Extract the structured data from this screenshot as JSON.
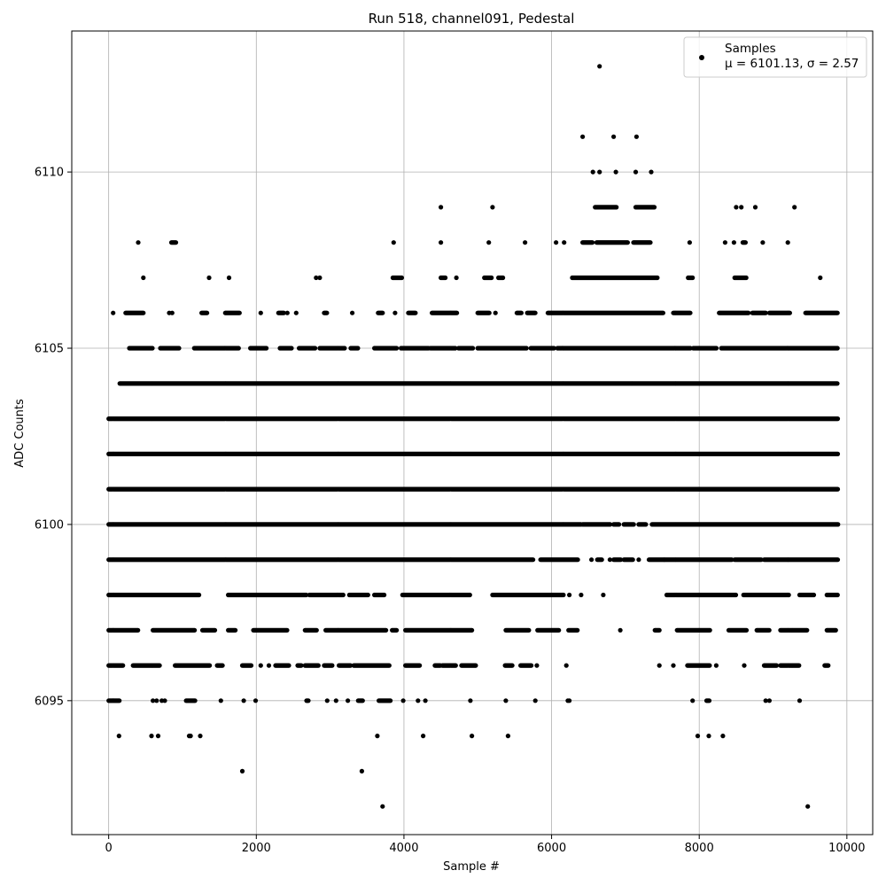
{
  "chart_data": {
    "type": "scatter",
    "title": "Run 518, channel091, Pedestal",
    "xlabel": "Sample #",
    "ylabel": "ADC Counts",
    "xlim": [
      -500,
      10350
    ],
    "ylim": [
      6091.2,
      6114.0
    ],
    "x_ticks": [
      0,
      2000,
      4000,
      6000,
      8000,
      10000
    ],
    "y_ticks": [
      6095,
      6100,
      6105,
      6110
    ],
    "grid": true,
    "legend_position": "top-right",
    "series": [
      {
        "name": "Samples",
        "marker_color": "#000000",
        "stats_label": "μ = 6101.13, σ = 2.57",
        "band_segments": [
          {
            "y": 6093,
            "x": [
              1810,
              3430
            ]
          },
          {
            "y": 6092,
            "x": [
              3710,
              9470
            ]
          },
          {
            "y": 6094,
            "x": [
              140,
              580,
              670,
              1090,
              1110,
              1240,
              3640,
              4260,
              4920,
              5410,
              7980,
              8130,
              8320
            ]
          },
          {
            "y": 6095,
            "x": [
              [
                0,
                150
              ],
              600,
              650,
              720,
              760,
              [
                1050,
                1170
              ],
              1520,
              1830,
              1990,
              [
                2680,
                2710
              ],
              2960,
              3080,
              3240,
              [
                3380,
                3440
              ],
              [
                3660,
                3820
              ],
              3990,
              4190,
              4290,
              4900,
              5380,
              5780,
              6220,
              6240,
              7910,
              [
                8100,
                8140
              ],
              8900,
              8950,
              9360
            ]
          },
          {
            "y": 6096,
            "x": [
              [
                0,
                200
              ],
              [
                330,
                700
              ],
              [
                900,
                1370
              ],
              [
                1470,
                1550
              ],
              [
                1810,
                1940
              ],
              2060,
              2170,
              [
                2260,
                2440
              ],
              [
                2560,
                2610
              ],
              [
                2660,
                2850
              ],
              [
                2920,
                3030
              ],
              [
                3120,
                3280
              ],
              [
                3320,
                3810
              ],
              [
                4020,
                4220
              ],
              [
                4420,
                4500
              ],
              [
                4520,
                4700
              ],
              [
                4780,
                4980
              ],
              [
                5370,
                5470
              ],
              [
                5580,
                5730
              ],
              5800,
              6200,
              7460,
              7650,
              [
                7840,
                8150
              ],
              8230,
              8610,
              [
                8880,
                9050
              ],
              [
                9100,
                9360
              ],
              [
                9700,
                9750
              ]
            ]
          },
          {
            "y": 6097,
            "x": [
              [
                0,
                400
              ],
              [
                600,
                1170
              ],
              [
                1270,
                1440
              ],
              [
                1620,
                1720
              ],
              [
                1960,
                2420
              ],
              [
                2660,
                2820
              ],
              [
                2940,
                3760
              ],
              [
                3840,
                3910
              ],
              [
                4020,
                4920
              ],
              [
                5380,
                5700
              ],
              [
                5810,
                6100
              ],
              [
                6230,
                6360
              ],
              6930,
              [
                7400,
                7460
              ],
              [
                7700,
                8150
              ],
              [
                8400,
                8650
              ],
              [
                8780,
                8950
              ],
              [
                9100,
                9470
              ],
              [
                9730,
                9850
              ]
            ]
          },
          {
            "y": 6098,
            "x": [
              [
                0,
                1230
              ],
              [
                1620,
                2680
              ],
              [
                2720,
                3180
              ],
              [
                3260,
                3520
              ],
              [
                3600,
                3740
              ],
              [
                3980,
                4900
              ],
              [
                5200,
                6160
              ],
              6240,
              6400,
              6700,
              [
                7560,
                8500
              ],
              [
                8600,
                9220
              ],
              [
                9360,
                9560
              ],
              [
                9730,
                9880
              ]
            ]
          },
          {
            "y": 6099,
            "x": [
              [
                0,
                5750
              ],
              [
                5850,
                6360
              ],
              6540,
              [
                6620,
                6690
              ],
              [
                6790,
                6800
              ],
              [
                6840,
                6940
              ],
              [
                6980,
                7100
              ],
              7180,
              [
                7320,
                7530
              ],
              [
                7530,
                8450
              ],
              [
                8480,
                8850
              ],
              [
                8880,
                9880
              ]
            ]
          },
          {
            "y": 6100,
            "x": [
              [
                0,
                6400
              ],
              [
                6420,
                6800
              ],
              [
                6840,
                6920
              ],
              [
                6980,
                7120
              ],
              [
                7180,
                7280
              ],
              [
                7360,
                9880
              ]
            ]
          },
          {
            "y": 6101,
            "x": [
              [
                0,
                9880
              ]
            ]
          },
          {
            "y": 6102,
            "x": [
              [
                0,
                9880
              ]
            ]
          },
          {
            "y": 6103,
            "x": [
              [
                0,
                9880
              ]
            ]
          },
          {
            "y": 6104,
            "x": [
              [
                150,
                9880
              ]
            ]
          },
          {
            "y": 6105,
            "x": [
              [
                280,
                600
              ],
              [
                700,
                960
              ],
              [
                1160,
                1760
              ],
              [
                1920,
                2140
              ],
              [
                2320,
                2480
              ],
              [
                2580,
                2800
              ],
              [
                2860,
                3200
              ],
              [
                3280,
                3380
              ],
              [
                3600,
                3900
              ],
              [
                3960,
                4340
              ],
              [
                4360,
                4700
              ],
              [
                4740,
                4940
              ],
              [
                5000,
                5660
              ],
              [
                5720,
                6040
              ],
              [
                6080,
                7880
              ],
              [
                7920,
                8240
              ],
              [
                8300,
                9880
              ]
            ]
          },
          {
            "y": 6106,
            "x": [
              60,
              [
                230,
                480
              ],
              820,
              860,
              [
                1260,
                1340
              ],
              [
                1580,
                1780
              ],
              2060,
              [
                2300,
                2380
              ],
              2420,
              2540,
              [
                2920,
                2960
              ],
              3300,
              [
                3650,
                3710
              ],
              3880,
              [
                4060,
                4160
              ],
              [
                4380,
                4720
              ],
              [
                5000,
                5160
              ],
              5240,
              [
                5530,
                5600
              ],
              [
                5670,
                5780
              ],
              [
                5950,
                7520
              ],
              [
                7650,
                7880
              ],
              [
                8270,
                8670
              ],
              [
                8720,
                8900
              ],
              [
                8950,
                9230
              ],
              [
                9440,
                9880
              ]
            ]
          },
          {
            "y": 6107,
            "x": [
              470,
              1360,
              1630,
              2810,
              2860,
              [
                3850,
                3980
              ],
              [
                4500,
                4560
              ],
              4710,
              [
                5090,
                5190
              ],
              [
                5280,
                5350
              ],
              [
                6280,
                7440
              ],
              [
                7850,
                7920
              ],
              [
                8480,
                8640
              ],
              9640
            ]
          },
          {
            "y": 6108,
            "x": [
              400,
              [
                850,
                920
              ],
              3860,
              4500,
              5150,
              5640,
              6060,
              6170,
              [
                6420,
                6560
              ],
              [
                6610,
                7040
              ],
              [
                7110,
                7340
              ],
              7870,
              8350,
              8470,
              [
                8590,
                8630
              ],
              8860,
              9200
            ]
          },
          {
            "y": 6109,
            "x": [
              4500,
              5200,
              [
                6590,
                6880
              ],
              [
                7140,
                7400
              ],
              8500,
              8570,
              8760,
              9290
            ]
          },
          {
            "y": 6110,
            "x": [
              6560,
              6650,
              6870,
              7140,
              7350
            ]
          },
          {
            "y": 6111,
            "x": [
              6420,
              6840,
              7150
            ]
          },
          {
            "y": 6113,
            "x": [
              6650
            ]
          }
        ]
      }
    ]
  }
}
